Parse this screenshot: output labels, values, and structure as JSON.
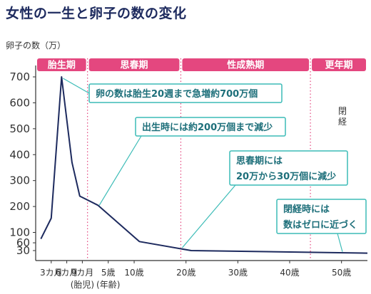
{
  "title": "女性の一生と卵子の数の変化",
  "colors": {
    "title": "#1d2a5e",
    "line": "#1d2a5e",
    "phase_bar": "#e4477f",
    "separator": "#e4477f",
    "callout_border": "#3cbcb7",
    "callout_text": "#1d6f7a",
    "callout_bg": "#ffffff"
  },
  "chart_data": {
    "type": "line",
    "title": "女性の一生と卵子の数の変化",
    "ylabel": "卵子の数（万）",
    "xlabel": "",
    "y_ticks": [
      30,
      60,
      100,
      200,
      300,
      400,
      500,
      600,
      700
    ],
    "ylim": [
      0,
      720
    ],
    "x_tick_labels": [
      {
        "label": "3カ月",
        "x": 3
      },
      {
        "label": "6カ月",
        "x": 6
      },
      {
        "label": "9カ月",
        "x": 9
      },
      {
        "label": "5歳",
        "x": 14
      },
      {
        "label": "10歳",
        "x": 19
      },
      {
        "label": "20歳",
        "x": 29
      },
      {
        "label": "30歳",
        "x": 39
      },
      {
        "label": "40歳",
        "x": 49
      },
      {
        "label": "50歳",
        "x": 59
      }
    ],
    "x_sublabels": [
      {
        "label": "(胎児)",
        "x": 9
      },
      {
        "label": "(年齢)",
        "x": 14
      }
    ],
    "x_range": [
      0,
      64
    ],
    "series": [
      {
        "name": "",
        "points": [
          [
            1,
            75
          ],
          [
            3,
            155
          ],
          [
            5,
            700
          ],
          [
            7,
            370
          ],
          [
            8.5,
            240
          ],
          [
            12,
            205
          ],
          [
            20,
            65
          ],
          [
            30,
            30
          ],
          [
            64,
            20
          ]
        ]
      }
    ],
    "phases": [
      {
        "label": "胎生期",
        "x_start": 0,
        "x_end": 10
      },
      {
        "label": "思春期",
        "x_start": 10,
        "x_end": 28
      },
      {
        "label": "性成熟期",
        "x_start": 28,
        "x_end": 53
      },
      {
        "label": "更年期",
        "x_start": 53,
        "x_end": 64
      }
    ],
    "separators": [
      10,
      28,
      53
    ],
    "annotations": [
      {
        "lines": [
          "卵の数は胎生20週まで急増約700万個"
        ],
        "anchor_x": 5,
        "anchor_y": 700,
        "box_x": 10,
        "box_y": 700
      },
      {
        "lines": [
          "出生時には約200万個まで減少"
        ],
        "anchor_x": 12,
        "anchor_y": 205,
        "box_x": 13,
        "box_y": 465
      },
      {
        "lines": [
          "思春期には",
          "20万から30万個に減少"
        ],
        "anchor_x": 28,
        "anchor_y": 30,
        "box_x": 29,
        "box_y": 320
      },
      {
        "lines": [
          "閉経時には",
          "数はゼロに近づく"
        ],
        "anchor_x": 60,
        "anchor_y": 20,
        "box_x": 48,
        "box_y": 140
      }
    ],
    "menopause_label": "閉経"
  }
}
